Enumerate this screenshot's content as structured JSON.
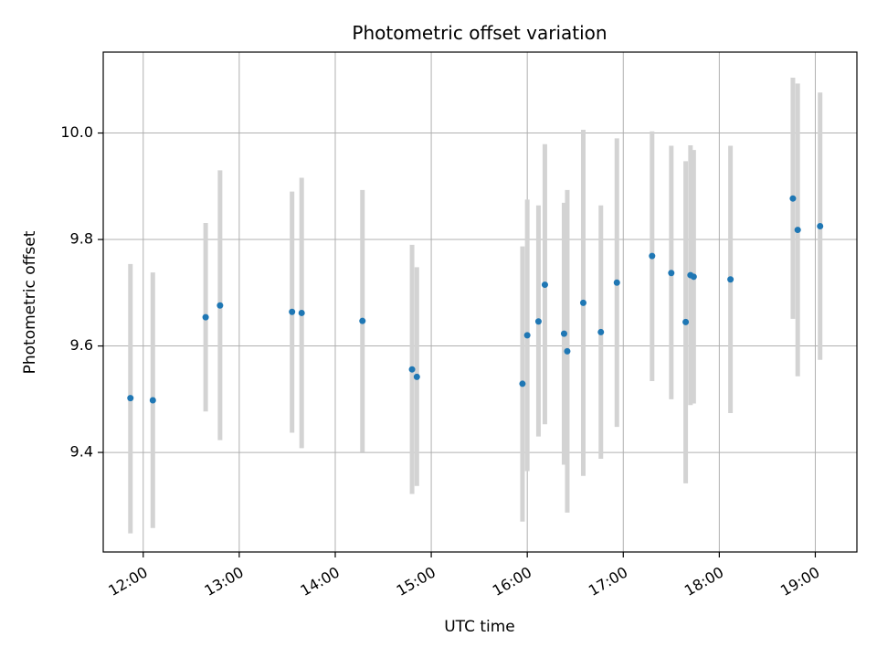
{
  "chart_data": {
    "type": "scatter",
    "title": "Photometric offset variation",
    "xlabel": "UTC time",
    "ylabel": "Photometric offset",
    "x_tick_labels": [
      "12:00",
      "13:00",
      "14:00",
      "15:00",
      "16:00",
      "17:00",
      "18:00",
      "19:00"
    ],
    "x_ticks": [
      "12:00",
      "13:00",
      "14:00",
      "15:00",
      "16:00",
      "17:00",
      "18:00",
      "19:00"
    ],
    "y_ticks": [
      9.4,
      9.6,
      9.8,
      10.0
    ],
    "y_tick_labels": [
      "9.4",
      "9.6",
      "9.8",
      "10.0"
    ],
    "xlim": [
      "11:35",
      "19:26"
    ],
    "ylim": [
      9.213,
      10.152
    ],
    "grid": true,
    "colors": {
      "point": "#1f77b4",
      "errorbar": "#d3d3d3",
      "grid": "#b0b0b0"
    },
    "points": [
      {
        "x": "11:52",
        "y": 9.502,
        "low": 9.248,
        "high": 9.754
      },
      {
        "x": "12:06",
        "y": 9.498,
        "low": 9.258,
        "high": 9.738
      },
      {
        "x": "12:39",
        "y": 9.654,
        "low": 9.477,
        "high": 9.831
      },
      {
        "x": "12:48",
        "y": 9.676,
        "low": 9.423,
        "high": 9.93
      },
      {
        "x": "13:33",
        "y": 9.664,
        "low": 9.437,
        "high": 9.89
      },
      {
        "x": "13:39",
        "y": 9.662,
        "low": 9.408,
        "high": 9.916
      },
      {
        "x": "14:17",
        "y": 9.647,
        "low": 9.401,
        "high": 9.893
      },
      {
        "x": "14:48",
        "y": 9.556,
        "low": 9.322,
        "high": 9.79
      },
      {
        "x": "14:51",
        "y": 9.542,
        "low": 9.337,
        "high": 9.748
      },
      {
        "x": "15:57",
        "y": 9.529,
        "low": 9.27,
        "high": 9.787
      },
      {
        "x": "16:00",
        "y": 9.62,
        "low": 9.365,
        "high": 9.875
      },
      {
        "x": "16:07",
        "y": 9.646,
        "low": 9.43,
        "high": 9.864
      },
      {
        "x": "16:11",
        "y": 9.715,
        "low": 9.453,
        "high": 9.979
      },
      {
        "x": "16:23",
        "y": 9.623,
        "low": 9.377,
        "high": 9.869
      },
      {
        "x": "16:25",
        "y": 9.59,
        "low": 9.287,
        "high": 9.893
      },
      {
        "x": "16:35",
        "y": 9.681,
        "low": 9.356,
        "high": 10.006
      },
      {
        "x": "16:46",
        "y": 9.626,
        "low": 9.388,
        "high": 9.864
      },
      {
        "x": "16:56",
        "y": 9.719,
        "low": 9.448,
        "high": 9.99
      },
      {
        "x": "17:18",
        "y": 9.769,
        "low": 9.534,
        "high": 10.003
      },
      {
        "x": "17:30",
        "y": 9.737,
        "low": 9.5,
        "high": 9.976
      },
      {
        "x": "17:39",
        "y": 9.645,
        "low": 9.342,
        "high": 9.947
      },
      {
        "x": "17:42",
        "y": 9.733,
        "low": 9.489,
        "high": 9.977
      },
      {
        "x": "17:44",
        "y": 9.73,
        "low": 9.492,
        "high": 9.968
      },
      {
        "x": "18:07",
        "y": 9.725,
        "low": 9.474,
        "high": 9.976
      },
      {
        "x": "18:46",
        "y": 9.877,
        "low": 9.651,
        "high": 10.104
      },
      {
        "x": "18:49",
        "y": 9.818,
        "low": 9.543,
        "high": 10.093
      },
      {
        "x": "19:03",
        "y": 9.825,
        "low": 9.574,
        "high": 10.076
      }
    ]
  }
}
